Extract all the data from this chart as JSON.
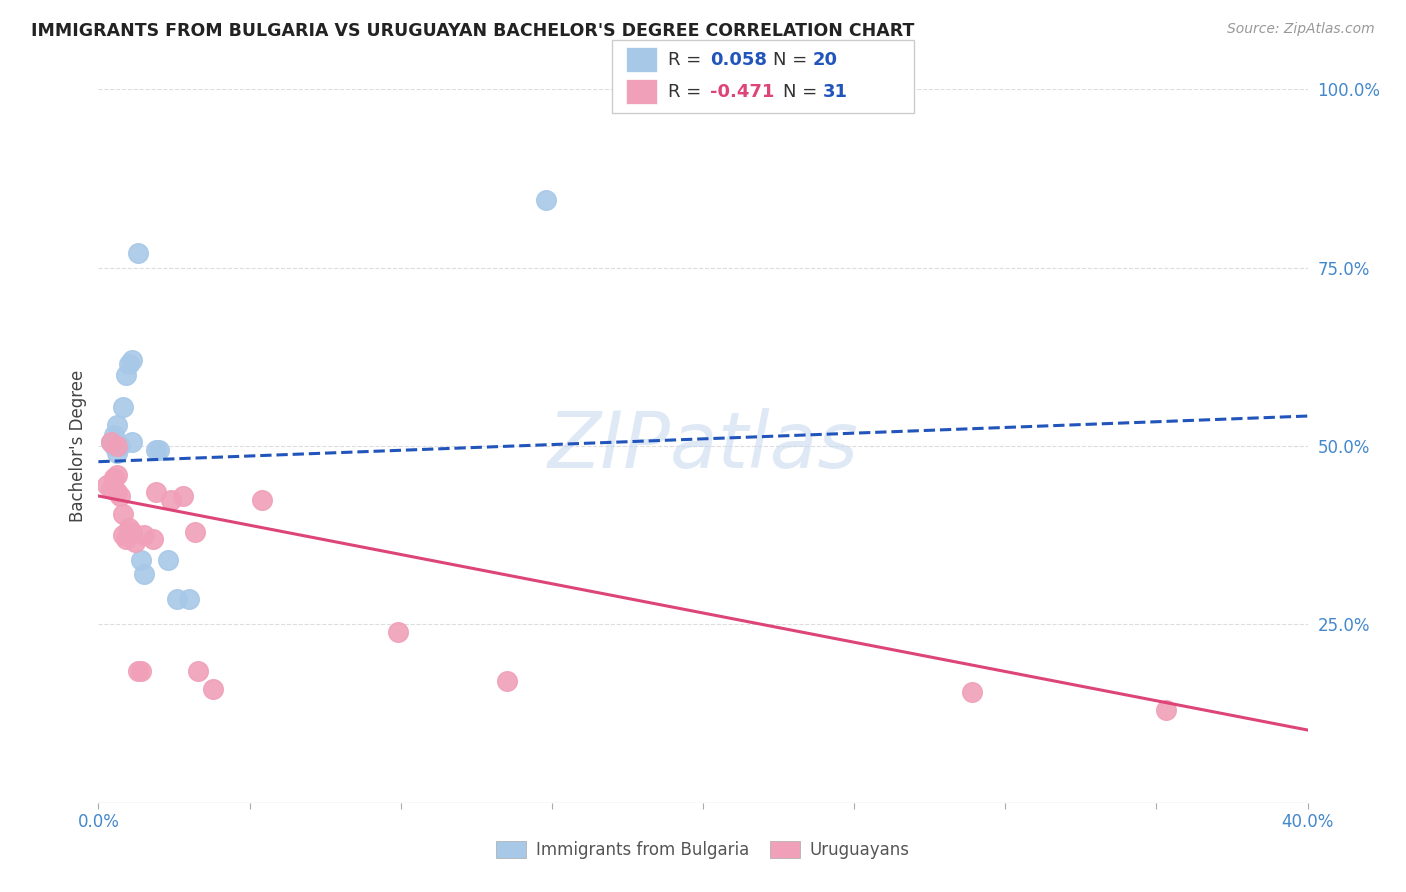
{
  "title": "IMMIGRANTS FROM BULGARIA VS URUGUAYAN BACHELOR'S DEGREE CORRELATION CHART",
  "source": "Source: ZipAtlas.com",
  "ylabel": "Bachelor's Degree",
  "xlim": [
    0.0,
    0.4
  ],
  "ylim": [
    0.0,
    1.0
  ],
  "xticks": [
    0.0,
    0.05,
    0.1,
    0.15,
    0.2,
    0.25,
    0.3,
    0.35,
    0.4
  ],
  "xticklabels": [
    "0.0%",
    "",
    "",
    "",
    "",
    "",
    "",
    "",
    "40.0%"
  ],
  "yticks_right": [
    0.0,
    0.25,
    0.5,
    0.75,
    1.0
  ],
  "yticklabels_right": [
    "",
    "25.0%",
    "50.0%",
    "75.0%",
    "100.0%"
  ],
  "blue_color": "#a8c8e8",
  "pink_color": "#f0a0b8",
  "blue_line_color": "#2255bb",
  "pink_line_color": "#dd4477",
  "grid_color": "#dddddd",
  "watermark": "ZIPatlas",
  "blue_points": [
    [
      0.004,
      0.505
    ],
    [
      0.005,
      0.515
    ],
    [
      0.005,
      0.5
    ],
    [
      0.006,
      0.49
    ],
    [
      0.006,
      0.53
    ],
    [
      0.007,
      0.5
    ],
    [
      0.008,
      0.555
    ],
    [
      0.009,
      0.6
    ],
    [
      0.01,
      0.615
    ],
    [
      0.011,
      0.62
    ],
    [
      0.011,
      0.505
    ],
    [
      0.013,
      0.77
    ],
    [
      0.014,
      0.34
    ],
    [
      0.015,
      0.32
    ],
    [
      0.019,
      0.495
    ],
    [
      0.02,
      0.495
    ],
    [
      0.023,
      0.34
    ],
    [
      0.026,
      0.285
    ],
    [
      0.03,
      0.285
    ],
    [
      0.148,
      0.845
    ]
  ],
  "pink_points": [
    [
      0.003,
      0.445
    ],
    [
      0.004,
      0.44
    ],
    [
      0.004,
      0.505
    ],
    [
      0.005,
      0.455
    ],
    [
      0.005,
      0.455
    ],
    [
      0.005,
      0.44
    ],
    [
      0.006,
      0.5
    ],
    [
      0.006,
      0.435
    ],
    [
      0.006,
      0.46
    ],
    [
      0.007,
      0.43
    ],
    [
      0.008,
      0.375
    ],
    [
      0.008,
      0.405
    ],
    [
      0.009,
      0.37
    ],
    [
      0.01,
      0.385
    ],
    [
      0.011,
      0.38
    ],
    [
      0.012,
      0.365
    ],
    [
      0.013,
      0.185
    ],
    [
      0.014,
      0.185
    ],
    [
      0.015,
      0.375
    ],
    [
      0.018,
      0.37
    ],
    [
      0.019,
      0.435
    ],
    [
      0.024,
      0.425
    ],
    [
      0.028,
      0.43
    ],
    [
      0.032,
      0.38
    ],
    [
      0.033,
      0.185
    ],
    [
      0.038,
      0.16
    ],
    [
      0.054,
      0.425
    ],
    [
      0.099,
      0.24
    ],
    [
      0.135,
      0.17
    ],
    [
      0.289,
      0.155
    ],
    [
      0.353,
      0.13
    ]
  ],
  "blue_intercept": 0.478,
  "blue_slope": 0.16,
  "pink_intercept": 0.43,
  "pink_slope": -0.82,
  "figsize": [
    14.06,
    8.92
  ],
  "dpi": 100
}
